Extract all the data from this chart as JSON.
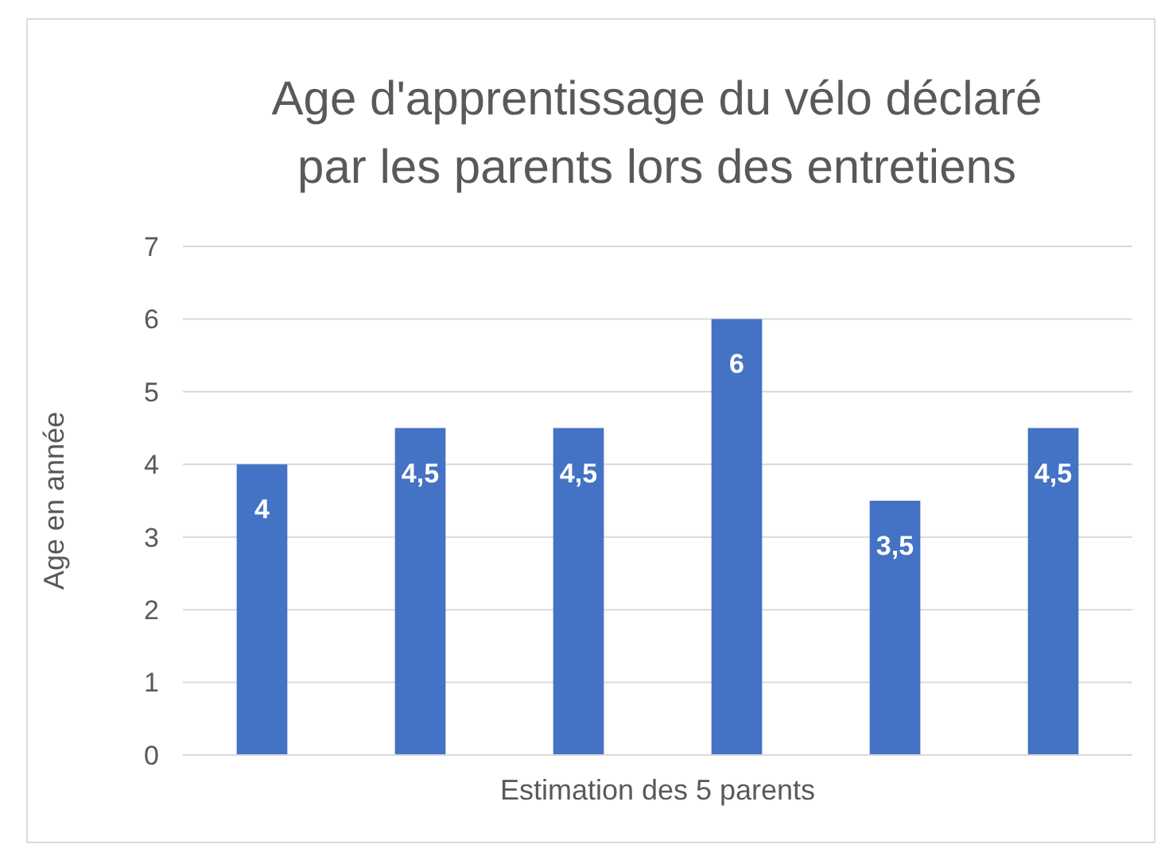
{
  "chart_data": {
    "type": "bar",
    "title": "Age d'apprentissage du vélo déclaré par les parents lors des entretiens",
    "xlabel": "Estimation des 5 parents",
    "ylabel": "Age en année",
    "categories": [
      null,
      null,
      null,
      null,
      null,
      null
    ],
    "values": [
      4,
      4.5,
      4.5,
      6,
      3.5,
      4.5
    ],
    "value_labels": [
      "4",
      "4,5",
      "4,5",
      "6",
      "3,5",
      "4,5"
    ],
    "color": "#4472c4",
    "ylim": [
      0,
      7
    ],
    "yticks": [
      0,
      1,
      2,
      3,
      4,
      5,
      6,
      7
    ],
    "grid": "y"
  }
}
